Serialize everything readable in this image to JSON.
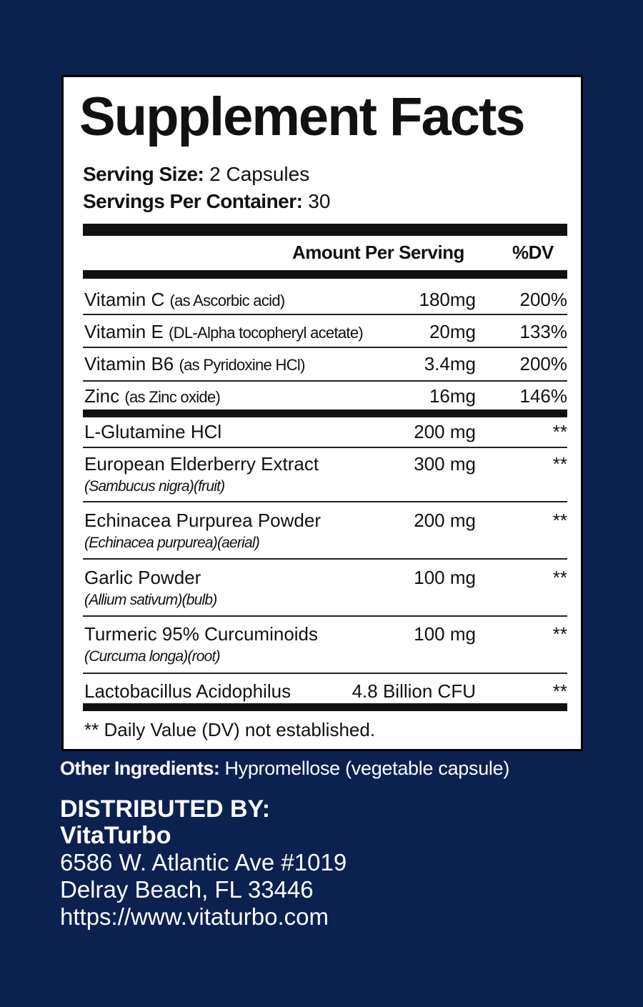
{
  "title": "Supplement Facts",
  "serving": {
    "size_label": "Serving Size:",
    "size_value": "2 Capsules",
    "per_container_label": "Servings Per Container:",
    "per_container_value": "30"
  },
  "header": {
    "amount_label": "Amount Per Serving",
    "dv_label": "%DV"
  },
  "nutrients": [
    {
      "name": "Vitamin C",
      "source": "(as Ascorbic acid)",
      "amount": "180mg",
      "dv": "200%"
    },
    {
      "name": "Vitamin E",
      "source": "(DL-Alpha tocopheryl acetate)",
      "amount": "20mg",
      "dv": "133%"
    },
    {
      "name": "Vitamin B6",
      "source": "(as Pyridoxine HCl)",
      "amount": "3.4mg",
      "dv": "200%"
    },
    {
      "name": "Zinc",
      "source": "(as Zinc oxide)",
      "amount": "16mg",
      "dv": "146%"
    }
  ],
  "ingredients": [
    {
      "name": "L-Glutamine HCl",
      "sub": "",
      "amount": "200 mg",
      "dv": "**"
    },
    {
      "name": "European Elderberry Extract",
      "sub": "(Sambucus nigra)(fruit)",
      "amount": "300 mg",
      "dv": "**"
    },
    {
      "name": "Echinacea Purpurea Powder",
      "sub": "(Echinacea purpurea)(aerial)",
      "amount": "200 mg",
      "dv": "**"
    },
    {
      "name": "Garlic Powder",
      "sub": "(Allium sativum)(bulb)",
      "amount": "100 mg",
      "dv": "**"
    },
    {
      "name": "Turmeric 95% Curcuminoids",
      "sub": "(Curcuma longa)(root)",
      "amount": "100 mg",
      "dv": "**"
    },
    {
      "name": "Lactobacillus Acidophilus",
      "sub": "",
      "amount": "4.8 Billion CFU",
      "dv": "**"
    }
  ],
  "footnote": "** Daily Value (DV) not established.",
  "other_ingredients": {
    "label": "Other Ingredients:",
    "value": "Hypromellose (vegetable capsule)"
  },
  "distributor": {
    "heading": "DISTRIBUTED BY:",
    "name": "VitaTurbo",
    "address1": "6586 W. Atlantic Ave #1019",
    "address2": "Delray Beach, FL 33446",
    "website": "https://www.vitaturbo.com"
  },
  "colors": {
    "background": "#0b2150",
    "panel": "#ffffff",
    "text": "#111111"
  }
}
